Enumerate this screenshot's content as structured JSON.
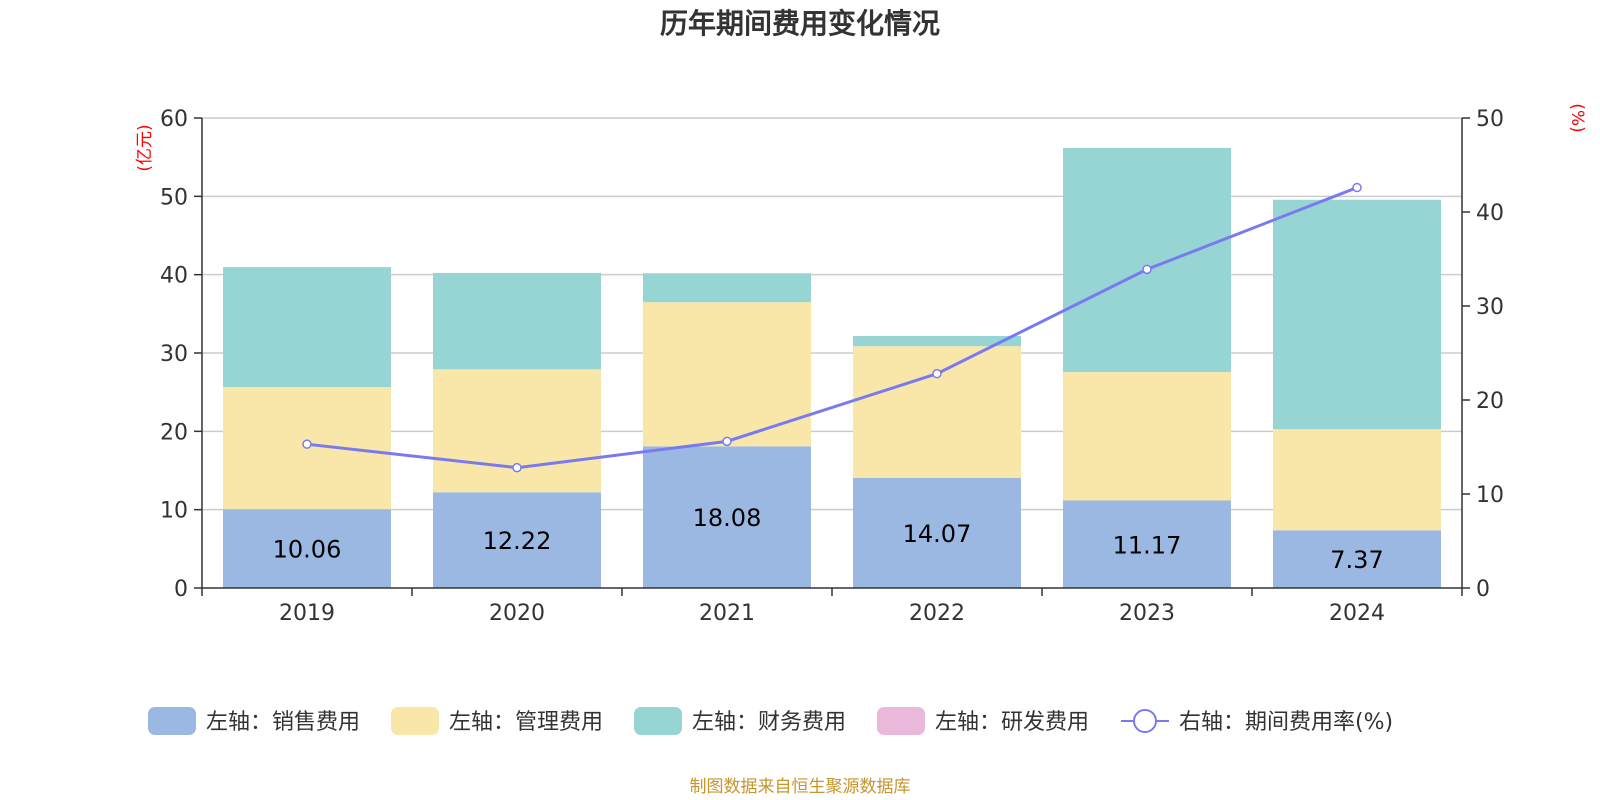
{
  "chart_data": {
    "type": "bar",
    "title": "历年期间费用变化情况",
    "left_unit": "(亿元)",
    "right_unit": "(%)",
    "categories": [
      "2019",
      "2020",
      "2021",
      "2022",
      "2023",
      "2024"
    ],
    "y_left": {
      "min": 0,
      "max": 60,
      "ticks": [
        "0",
        "10",
        "20",
        "30",
        "40",
        "50",
        "60"
      ]
    },
    "y_right": {
      "min": 0,
      "max": 50,
      "ticks": [
        "0",
        "10",
        "20",
        "30",
        "40",
        "50"
      ]
    },
    "grid": true,
    "legend_position": "bottom",
    "series": [
      {
        "name": "左轴：销售费用",
        "type": "bar",
        "axis": "left",
        "color": "#9bb8e3",
        "values": [
          10.06,
          12.22,
          18.08,
          14.07,
          11.17,
          7.37
        ],
        "show_labels": true
      },
      {
        "name": "左轴：管理费用",
        "type": "bar",
        "axis": "left",
        "color": "#f8e7a9",
        "values": [
          15.6,
          15.7,
          18.4,
          16.8,
          16.4,
          12.9
        ]
      },
      {
        "name": "左轴：财务费用",
        "type": "bar",
        "axis": "left",
        "color": "#97d4d4",
        "values": [
          15.3,
          12.3,
          3.7,
          1.3,
          28.6,
          29.3
        ]
      },
      {
        "name": "左轴：研发费用",
        "type": "bar",
        "axis": "left",
        "color": "#e9b8da",
        "values": [
          0,
          0,
          0,
          0,
          0,
          0
        ]
      },
      {
        "name": "右轴：期间费用率(%)",
        "type": "line",
        "axis": "right",
        "color": "#7a7af0",
        "values": [
          15.3,
          12.8,
          15.6,
          22.8,
          33.9,
          42.6
        ]
      }
    ]
  },
  "footer": {
    "source": "制图数据来自恒生聚源数据库"
  }
}
